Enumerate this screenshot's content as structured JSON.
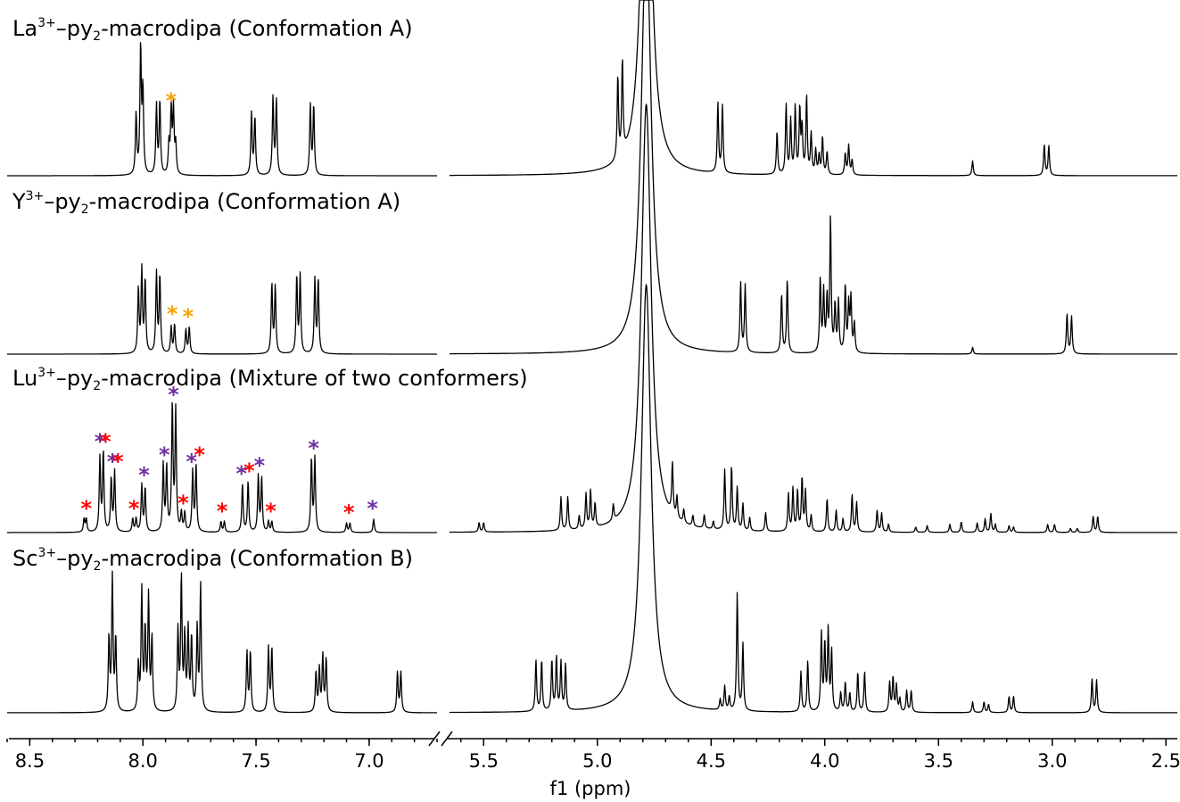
{
  "chart_data": {
    "type": "line",
    "xlabel": "f1 (ppm)",
    "x_ticks": [
      8.5,
      8.0,
      7.5,
      7.0,
      5.5,
      5.0,
      4.5,
      4.0,
      3.5,
      3.0,
      2.5
    ],
    "x_tick_labels": [
      "8.5",
      "8.0",
      "7.5",
      "7.0",
      "5.5",
      "5.0",
      "4.5",
      "4.0",
      "3.5",
      "3.0",
      "2.5"
    ],
    "x_reversed": true,
    "axis_break": [
      6.7,
      5.65
    ],
    "xlim_left_panel": [
      8.6,
      6.7
    ],
    "xlim_right_panel": [
      5.65,
      2.45
    ],
    "colors": {
      "trace": "#000000",
      "conformer_1_star": "#ff0000",
      "conformer_2_star": "#7030a0",
      "impurity_star": "#f5a300"
    },
    "star_symbol": "*",
    "spectra": [
      {
        "title_element": "La",
        "title_charge": "3+",
        "title_ligand": "–py",
        "title_sub": "2",
        "title_rest": "-macrodipa (Conformation A)",
        "peaks": [
          {
            "ppm": 8.03,
            "h": 0.45
          },
          {
            "ppm": 8.01,
            "h": 0.95
          },
          {
            "ppm": 8.0,
            "h": 0.62
          },
          {
            "ppm": 7.94,
            "h": 0.52
          },
          {
            "ppm": 7.925,
            "h": 0.55
          },
          {
            "ppm": 7.885,
            "h": 0.22
          },
          {
            "ppm": 7.875,
            "h": 0.48
          },
          {
            "ppm": 7.865,
            "h": 0.48
          },
          {
            "ppm": 7.855,
            "h": 0.22
          },
          {
            "ppm": 7.52,
            "h": 0.46
          },
          {
            "ppm": 7.505,
            "h": 0.43
          },
          {
            "ppm": 7.425,
            "h": 0.58
          },
          {
            "ppm": 7.41,
            "h": 0.56
          },
          {
            "ppm": 7.26,
            "h": 0.52
          },
          {
            "ppm": 7.245,
            "h": 0.52
          },
          {
            "ppm": 4.91,
            "h": 0.62
          },
          {
            "ppm": 4.89,
            "h": 0.7
          },
          {
            "ppm": 4.47,
            "h": 0.52
          },
          {
            "ppm": 4.45,
            "h": 0.5
          },
          {
            "ppm": 4.21,
            "h": 0.32
          },
          {
            "ppm": 4.17,
            "h": 0.52
          },
          {
            "ppm": 4.15,
            "h": 0.4
          },
          {
            "ppm": 4.13,
            "h": 0.5
          },
          {
            "ppm": 4.11,
            "h": 0.48
          },
          {
            "ppm": 4.1,
            "h": 0.34
          },
          {
            "ppm": 4.08,
            "h": 0.58
          },
          {
            "ppm": 4.06,
            "h": 0.3
          },
          {
            "ppm": 4.04,
            "h": 0.18
          },
          {
            "ppm": 4.025,
            "h": 0.14
          },
          {
            "ppm": 4.01,
            "h": 0.28
          },
          {
            "ppm": 3.99,
            "h": 0.17
          },
          {
            "ppm": 3.91,
            "h": 0.16
          },
          {
            "ppm": 3.895,
            "h": 0.22
          },
          {
            "ppm": 3.88,
            "h": 0.11
          },
          {
            "ppm": 3.35,
            "h": 0.11
          },
          {
            "ppm": 3.035,
            "h": 0.23
          },
          {
            "ppm": 3.015,
            "h": 0.22
          }
        ],
        "stars": [
          {
            "ppm": 7.875,
            "color": "impurity"
          }
        ]
      },
      {
        "title_element": "Y",
        "title_charge": "3+",
        "title_ligand": "–py",
        "title_sub": "2",
        "title_rest": "-macrodipa (Conformation A)",
        "peaks": [
          {
            "ppm": 8.02,
            "h": 0.48
          },
          {
            "ppm": 8.005,
            "h": 0.62
          },
          {
            "ppm": 7.99,
            "h": 0.55
          },
          {
            "ppm": 7.94,
            "h": 0.6
          },
          {
            "ppm": 7.925,
            "h": 0.58
          },
          {
            "ppm": 7.875,
            "h": 0.2
          },
          {
            "ppm": 7.86,
            "h": 0.22
          },
          {
            "ppm": 7.81,
            "h": 0.18
          },
          {
            "ppm": 7.795,
            "h": 0.2
          },
          {
            "ppm": 7.43,
            "h": 0.52
          },
          {
            "ppm": 7.415,
            "h": 0.5
          },
          {
            "ppm": 7.32,
            "h": 0.58
          },
          {
            "ppm": 7.305,
            "h": 0.58
          },
          {
            "ppm": 7.24,
            "h": 0.55
          },
          {
            "ppm": 7.225,
            "h": 0.55
          },
          {
            "ppm": 4.37,
            "h": 0.52
          },
          {
            "ppm": 4.35,
            "h": 0.5
          },
          {
            "ppm": 4.19,
            "h": 0.44
          },
          {
            "ppm": 4.165,
            "h": 0.55
          },
          {
            "ppm": 4.02,
            "h": 0.55
          },
          {
            "ppm": 4.005,
            "h": 0.45
          },
          {
            "ppm": 3.99,
            "h": 0.4
          },
          {
            "ppm": 3.975,
            "h": 1.0
          },
          {
            "ppm": 3.955,
            "h": 0.35
          },
          {
            "ppm": 3.94,
            "h": 0.38
          },
          {
            "ppm": 3.91,
            "h": 0.5
          },
          {
            "ppm": 3.895,
            "h": 0.35
          },
          {
            "ppm": 3.885,
            "h": 0.4
          },
          {
            "ppm": 3.87,
            "h": 0.22
          },
          {
            "ppm": 3.35,
            "h": 0.05
          },
          {
            "ppm": 2.935,
            "h": 0.3
          },
          {
            "ppm": 2.915,
            "h": 0.28
          }
        ],
        "stars": [
          {
            "ppm": 7.87,
            "color": "impurity"
          },
          {
            "ppm": 7.8,
            "color": "impurity"
          }
        ]
      },
      {
        "title_element": "Lu",
        "title_charge": "3+",
        "title_ligand": "–py",
        "title_sub": "2",
        "title_rest": "-macrodipa (Mixture of two conformers)",
        "peaks": [
          {
            "ppm": 8.26,
            "h": 0.1
          },
          {
            "ppm": 8.25,
            "h": 0.1
          },
          {
            "ppm": 8.19,
            "h": 0.55
          },
          {
            "ppm": 8.175,
            "h": 0.6
          },
          {
            "ppm": 8.14,
            "h": 0.4
          },
          {
            "ppm": 8.125,
            "h": 0.45
          },
          {
            "ppm": 8.045,
            "h": 0.1
          },
          {
            "ppm": 8.03,
            "h": 0.1
          },
          {
            "ppm": 8.005,
            "h": 0.35
          },
          {
            "ppm": 7.99,
            "h": 0.33
          },
          {
            "ppm": 7.91,
            "h": 0.5
          },
          {
            "ppm": 7.895,
            "h": 0.48
          },
          {
            "ppm": 7.87,
            "h": 0.95
          },
          {
            "ppm": 7.855,
            "h": 0.9
          },
          {
            "ppm": 7.83,
            "h": 0.14
          },
          {
            "ppm": 7.815,
            "h": 0.14
          },
          {
            "ppm": 7.78,
            "h": 0.45
          },
          {
            "ppm": 7.765,
            "h": 0.5
          },
          {
            "ppm": 7.655,
            "h": 0.08
          },
          {
            "ppm": 7.64,
            "h": 0.08
          },
          {
            "ppm": 7.56,
            "h": 0.36
          },
          {
            "ppm": 7.535,
            "h": 0.38
          },
          {
            "ppm": 7.49,
            "h": 0.42
          },
          {
            "ppm": 7.475,
            "h": 0.4
          },
          {
            "ppm": 7.445,
            "h": 0.08
          },
          {
            "ppm": 7.43,
            "h": 0.08
          },
          {
            "ppm": 7.255,
            "h": 0.55
          },
          {
            "ppm": 7.24,
            "h": 0.55
          },
          {
            "ppm": 7.1,
            "h": 0.07
          },
          {
            "ppm": 7.085,
            "h": 0.07
          },
          {
            "ppm": 6.98,
            "h": 0.1
          },
          {
            "ppm": 5.52,
            "h": 0.07
          },
          {
            "ppm": 5.5,
            "h": 0.07
          },
          {
            "ppm": 5.16,
            "h": 0.25
          },
          {
            "ppm": 5.13,
            "h": 0.25
          },
          {
            "ppm": 5.08,
            "h": 0.1
          },
          {
            "ppm": 5.05,
            "h": 0.26
          },
          {
            "ppm": 5.03,
            "h": 0.28
          },
          {
            "ppm": 5.01,
            "h": 0.18
          },
          {
            "ppm": 4.93,
            "h": 0.12
          },
          {
            "ppm": 4.67,
            "h": 0.38
          },
          {
            "ppm": 4.65,
            "h": 0.16
          },
          {
            "ppm": 4.62,
            "h": 0.1
          },
          {
            "ppm": 4.58,
            "h": 0.08
          },
          {
            "ppm": 4.53,
            "h": 0.1
          },
          {
            "ppm": 4.49,
            "h": 0.06
          },
          {
            "ppm": 4.44,
            "h": 0.45
          },
          {
            "ppm": 4.41,
            "h": 0.48
          },
          {
            "ppm": 4.385,
            "h": 0.32
          },
          {
            "ppm": 4.36,
            "h": 0.2
          },
          {
            "ppm": 4.33,
            "h": 0.1
          },
          {
            "ppm": 4.26,
            "h": 0.14
          },
          {
            "ppm": 4.16,
            "h": 0.28
          },
          {
            "ppm": 4.14,
            "h": 0.32
          },
          {
            "ppm": 4.12,
            "h": 0.3
          },
          {
            "ppm": 4.1,
            "h": 0.4
          },
          {
            "ppm": 4.085,
            "h": 0.3
          },
          {
            "ppm": 4.06,
            "h": 0.12
          },
          {
            "ppm": 3.99,
            "h": 0.25
          },
          {
            "ppm": 3.95,
            "h": 0.16
          },
          {
            "ppm": 3.92,
            "h": 0.1
          },
          {
            "ppm": 3.88,
            "h": 0.28
          },
          {
            "ppm": 3.86,
            "h": 0.22
          },
          {
            "ppm": 3.77,
            "h": 0.16
          },
          {
            "ppm": 3.75,
            "h": 0.14
          },
          {
            "ppm": 3.72,
            "h": 0.06
          },
          {
            "ppm": 3.6,
            "h": 0.04
          },
          {
            "ppm": 3.55,
            "h": 0.05
          },
          {
            "ppm": 3.45,
            "h": 0.06
          },
          {
            "ppm": 3.4,
            "h": 0.08
          },
          {
            "ppm": 3.33,
            "h": 0.07
          },
          {
            "ppm": 3.295,
            "h": 0.1
          },
          {
            "ppm": 3.27,
            "h": 0.14
          },
          {
            "ppm": 3.25,
            "h": 0.06
          },
          {
            "ppm": 3.19,
            "h": 0.05
          },
          {
            "ppm": 3.17,
            "h": 0.04
          },
          {
            "ppm": 3.02,
            "h": 0.06
          },
          {
            "ppm": 2.99,
            "h": 0.06
          },
          {
            "ppm": 2.92,
            "h": 0.03
          },
          {
            "ppm": 2.89,
            "h": 0.03
          },
          {
            "ppm": 2.82,
            "h": 0.12
          },
          {
            "ppm": 2.8,
            "h": 0.12
          }
        ],
        "stars": [
          {
            "ppm": 8.25,
            "color": "c1"
          },
          {
            "ppm": 8.19,
            "color": "c2"
          },
          {
            "ppm": 8.165,
            "color": "c1"
          },
          {
            "ppm": 8.135,
            "color": "c2"
          },
          {
            "ppm": 8.11,
            "color": "c1"
          },
          {
            "ppm": 8.04,
            "color": "c1"
          },
          {
            "ppm": 7.995,
            "color": "c2"
          },
          {
            "ppm": 7.905,
            "color": "c2"
          },
          {
            "ppm": 7.865,
            "color": "c2"
          },
          {
            "ppm": 7.822,
            "color": "c1"
          },
          {
            "ppm": 7.785,
            "color": "c2"
          },
          {
            "ppm": 7.75,
            "color": "c1"
          },
          {
            "ppm": 7.65,
            "color": "c1"
          },
          {
            "ppm": 7.565,
            "color": "c2"
          },
          {
            "ppm": 7.53,
            "color": "c1"
          },
          {
            "ppm": 7.485,
            "color": "c2"
          },
          {
            "ppm": 7.435,
            "color": "c1"
          },
          {
            "ppm": 7.245,
            "color": "c2"
          },
          {
            "ppm": 7.09,
            "color": "c1"
          },
          {
            "ppm": 6.985,
            "color": "c2"
          }
        ]
      },
      {
        "title_element": "Sc",
        "title_charge": "3+",
        "title_ligand": "–py",
        "title_sub": "2",
        "title_rest": "-macrodipa (Conformation B)",
        "peaks": [
          {
            "ppm": 8.15,
            "h": 0.55
          },
          {
            "ppm": 8.135,
            "h": 1.0
          },
          {
            "ppm": 8.12,
            "h": 0.55
          },
          {
            "ppm": 8.02,
            "h": 0.35
          },
          {
            "ppm": 8.005,
            "h": 0.9
          },
          {
            "ppm": 7.99,
            "h": 0.6
          },
          {
            "ppm": 7.975,
            "h": 0.85
          },
          {
            "ppm": 7.96,
            "h": 0.55
          },
          {
            "ppm": 7.845,
            "h": 0.6
          },
          {
            "ppm": 7.83,
            "h": 1.0
          },
          {
            "ppm": 7.815,
            "h": 0.55
          },
          {
            "ppm": 7.8,
            "h": 0.6
          },
          {
            "ppm": 7.785,
            "h": 0.55
          },
          {
            "ppm": 7.76,
            "h": 0.62
          },
          {
            "ppm": 7.745,
            "h": 0.95
          },
          {
            "ppm": 7.54,
            "h": 0.45
          },
          {
            "ppm": 7.525,
            "h": 0.45
          },
          {
            "ppm": 7.445,
            "h": 0.48
          },
          {
            "ppm": 7.43,
            "h": 0.48
          },
          {
            "ppm": 7.235,
            "h": 0.3
          },
          {
            "ppm": 7.22,
            "h": 0.32
          },
          {
            "ppm": 7.205,
            "h": 0.42
          },
          {
            "ppm": 7.19,
            "h": 0.4
          },
          {
            "ppm": 6.875,
            "h": 0.3
          },
          {
            "ppm": 6.86,
            "h": 0.3
          },
          {
            "ppm": 5.27,
            "h": 0.38
          },
          {
            "ppm": 5.245,
            "h": 0.38
          },
          {
            "ppm": 5.2,
            "h": 0.38
          },
          {
            "ppm": 5.18,
            "h": 0.4
          },
          {
            "ppm": 5.16,
            "h": 0.36
          },
          {
            "ppm": 5.14,
            "h": 0.34
          },
          {
            "ppm": 4.46,
            "h": 0.08
          },
          {
            "ppm": 4.44,
            "h": 0.18
          },
          {
            "ppm": 4.42,
            "h": 0.1
          },
          {
            "ppm": 4.385,
            "h": 0.88
          },
          {
            "ppm": 4.36,
            "h": 0.5
          },
          {
            "ppm": 4.105,
            "h": 0.3
          },
          {
            "ppm": 4.075,
            "h": 0.38
          },
          {
            "ppm": 4.015,
            "h": 0.58
          },
          {
            "ppm": 4.0,
            "h": 0.5
          },
          {
            "ppm": 3.985,
            "h": 0.6
          },
          {
            "ppm": 3.97,
            "h": 0.45
          },
          {
            "ppm": 3.93,
            "h": 0.14
          },
          {
            "ppm": 3.91,
            "h": 0.22
          },
          {
            "ppm": 3.89,
            "h": 0.14
          },
          {
            "ppm": 3.855,
            "h": 0.3
          },
          {
            "ppm": 3.825,
            "h": 0.3
          },
          {
            "ppm": 3.715,
            "h": 0.22
          },
          {
            "ppm": 3.7,
            "h": 0.26
          },
          {
            "ppm": 3.685,
            "h": 0.2
          },
          {
            "ppm": 3.67,
            "h": 0.1
          },
          {
            "ppm": 3.64,
            "h": 0.16
          },
          {
            "ppm": 3.62,
            "h": 0.16
          },
          {
            "ppm": 3.35,
            "h": 0.08
          },
          {
            "ppm": 3.3,
            "h": 0.08
          },
          {
            "ppm": 3.28,
            "h": 0.06
          },
          {
            "ppm": 3.19,
            "h": 0.12
          },
          {
            "ppm": 3.17,
            "h": 0.12
          },
          {
            "ppm": 2.825,
            "h": 0.25
          },
          {
            "ppm": 2.805,
            "h": 0.24
          }
        ],
        "stars": []
      }
    ]
  }
}
